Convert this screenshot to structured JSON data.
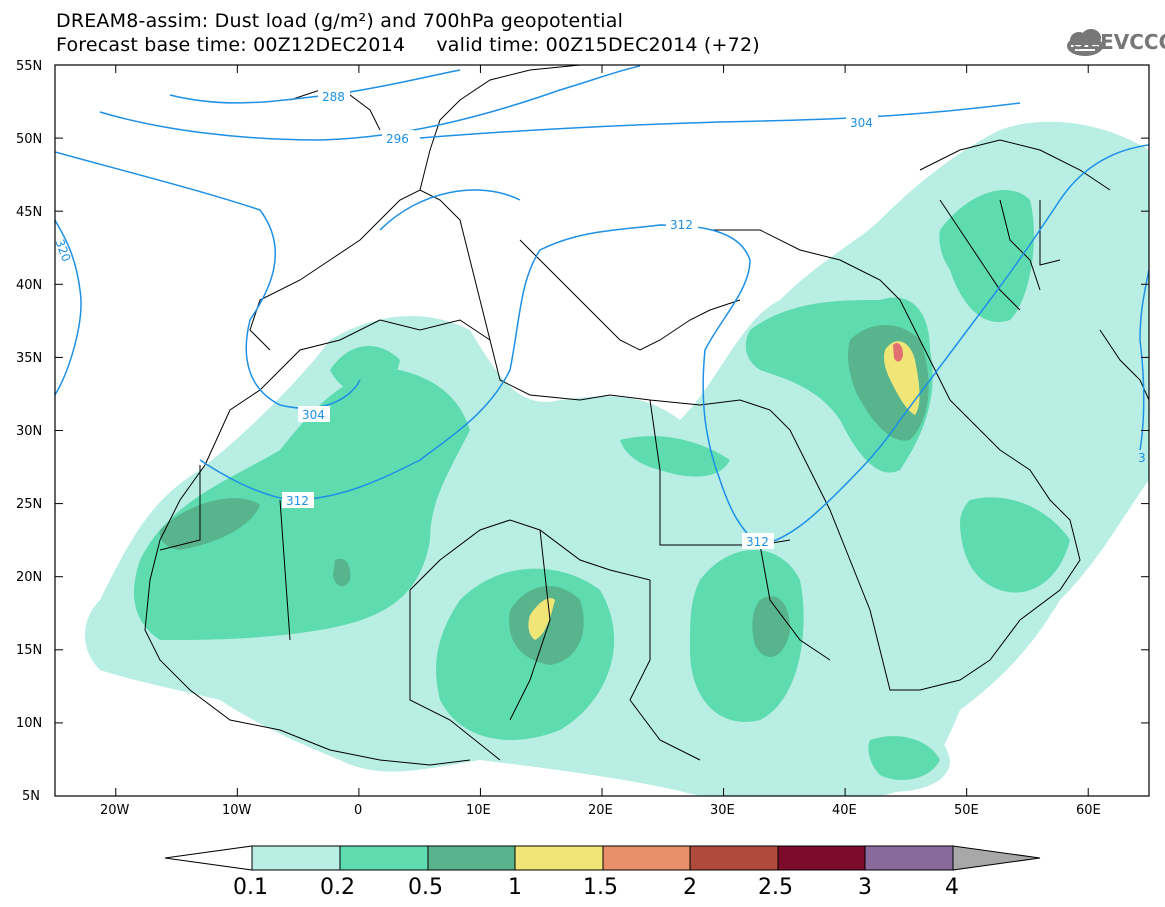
{
  "title": {
    "line1": "DREAM8-assim: Dust load (g/m²) and 700hPa geopotential",
    "line2": "Forecast base time: 00Z12DEC2014     valid time: 00Z15DEC2014 (+72)"
  },
  "logo": {
    "text": "SEEVCCC",
    "icon": "cloud-icon"
  },
  "map": {
    "lat_range": [
      5,
      55
    ],
    "lon_range": [
      -25,
      65
    ],
    "lat_ticks": [
      "55N",
      "50N",
      "45N",
      "40N",
      "35N",
      "30N",
      "25N",
      "20N",
      "15N",
      "10N",
      "5N"
    ],
    "lon_ticks": [
      "20W",
      "10W",
      "0",
      "10E",
      "20E",
      "30E",
      "40E",
      "50E",
      "60E"
    ]
  },
  "contour_labels": [
    "288",
    "296",
    "304",
    "304",
    "312",
    "312",
    "312",
    "320",
    "3"
  ],
  "colorbar": {
    "levels": [
      "0.1",
      "0.2",
      "0.5",
      "1",
      "1.5",
      "2",
      "2.5",
      "3",
      "4"
    ],
    "colors": [
      "#ffffff",
      "#b8eee4",
      "#5edcb0",
      "#58b48c",
      "#f0e678",
      "#e8906a",
      "#b04a3c",
      "#7c0a2a",
      "#8a6a9c",
      "#a8a8a8"
    ]
  },
  "colors": {
    "contour": "#1e90e6",
    "dust_low": "#b8eee4",
    "dust_mid": "#5edcb0",
    "dust_high": "#58b48c",
    "dust_peak": "#f0e678",
    "dust_extreme": "#e07070"
  }
}
